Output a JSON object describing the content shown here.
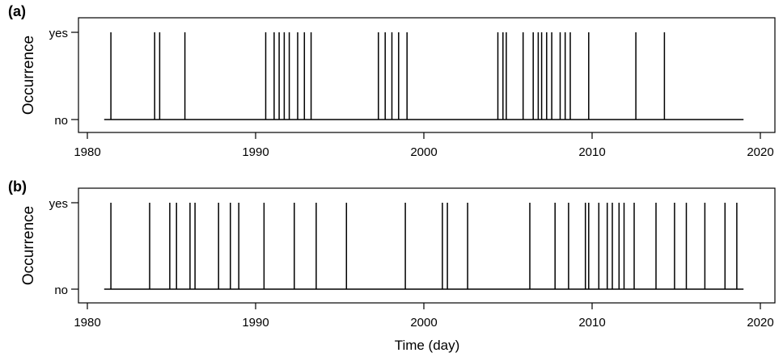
{
  "chart_data": [
    {
      "type": "event-spike",
      "panel_label": "(a)",
      "ylabel": "Occurrence",
      "y_levels": [
        "no",
        "yes"
      ],
      "xlim": [
        1980,
        2020
      ],
      "x_ticks": [
        1980,
        1990,
        2000,
        2010,
        2020
      ],
      "xlabel": "",
      "baseline_range": [
        1981.0,
        2019.0
      ],
      "events": [
        1981.4,
        1984.0,
        1984.3,
        1985.8,
        1990.6,
        1991.1,
        1991.4,
        1991.7,
        1992.0,
        1992.5,
        1992.9,
        1993.3,
        1997.3,
        1997.7,
        1998.1,
        1998.5,
        1999.0,
        2004.4,
        2004.7,
        2004.9,
        2005.9,
        2006.5,
        2006.8,
        2007.0,
        2007.3,
        2007.6,
        2008.1,
        2008.4,
        2008.7,
        2009.8,
        2012.6,
        2014.3
      ]
    },
    {
      "type": "event-spike",
      "panel_label": "(b)",
      "ylabel": "Occurrence",
      "y_levels": [
        "no",
        "yes"
      ],
      "xlim": [
        1980,
        2020
      ],
      "x_ticks": [
        1980,
        1990,
        2000,
        2010,
        2020
      ],
      "xlabel": "Time (day)",
      "baseline_range": [
        1981.0,
        2019.0
      ],
      "events": [
        1981.4,
        1983.7,
        1984.9,
        1985.3,
        1986.1,
        1986.4,
        1987.8,
        1988.5,
        1989.0,
        1990.5,
        1992.3,
        1993.6,
        1995.4,
        1998.9,
        2001.1,
        2001.4,
        2002.6,
        2006.3,
        2007.8,
        2008.6,
        2009.6,
        2009.8,
        2010.4,
        2010.9,
        2011.2,
        2011.6,
        2011.9,
        2012.5,
        2013.8,
        2014.9,
        2015.6,
        2016.7,
        2017.9,
        2018.6
      ]
    }
  ]
}
